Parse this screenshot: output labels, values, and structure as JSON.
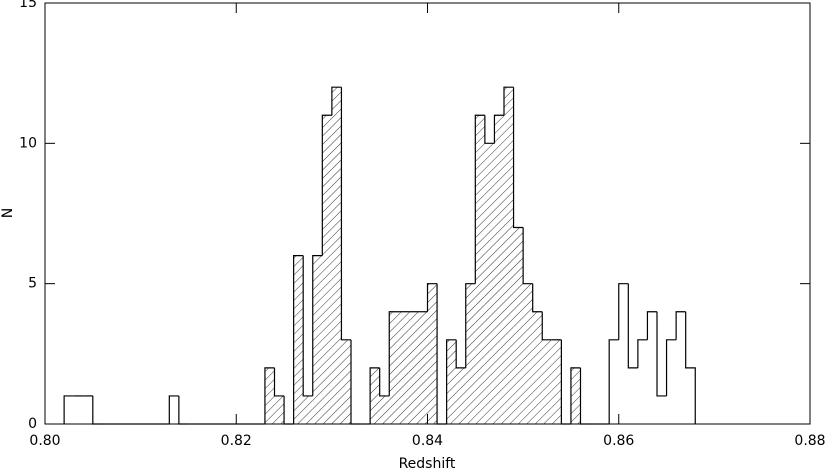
{
  "chart_data": {
    "type": "histogram",
    "xlabel": "Redshift",
    "ylabel": "N",
    "xlim": [
      0.8,
      0.88
    ],
    "ylim": [
      0,
      15
    ],
    "xticks": [
      {
        "value": 0.8,
        "label": "0.80"
      },
      0.82,
      0.84,
      0.86,
      0.88
    ],
    "yticks": [
      0,
      5,
      10,
      15
    ],
    "bins": [
      0.802,
      0.803,
      0.804,
      0.805,
      0.806,
      0.807,
      0.808,
      0.809,
      0.81,
      0.811,
      0.812,
      0.813,
      0.814,
      0.815,
      0.816,
      0.817,
      0.818,
      0.819,
      0.82,
      0.821,
      0.822,
      0.823,
      0.824,
      0.825,
      0.826,
      0.827,
      0.828,
      0.829,
      0.83,
      0.831,
      0.832,
      0.833,
      0.834,
      0.835,
      0.836,
      0.837,
      0.838,
      0.839,
      0.84,
      0.841,
      0.842,
      0.843,
      0.844,
      0.845,
      0.846,
      0.847,
      0.848,
      0.849,
      0.85,
      0.851,
      0.852,
      0.853,
      0.854,
      0.855,
      0.856,
      0.857,
      0.858,
      0.859,
      0.86,
      0.861,
      0.862,
      0.863,
      0.864,
      0.865,
      0.866,
      0.867,
      0.868
    ],
    "series": [
      {
        "style": "outline",
        "color": "#000000",
        "values": [
          1,
          1,
          1,
          0,
          0,
          0,
          0,
          0,
          0,
          0,
          0,
          1,
          0,
          0,
          0,
          0,
          0,
          0,
          0,
          0,
          0,
          2,
          1,
          0,
          6,
          1,
          6,
          11,
          12,
          3,
          0,
          0,
          2,
          1,
          4,
          4,
          4,
          4,
          5,
          0,
          3,
          2,
          5,
          11,
          10,
          11,
          12,
          7,
          5,
          4,
          3,
          3,
          0,
          2,
          0,
          0,
          0,
          3,
          5,
          2,
          3,
          4,
          1,
          3,
          4,
          2
        ]
      },
      {
        "style": "hatched",
        "color": "#000000",
        "values": [
          0,
          0,
          0,
          0,
          0,
          0,
          0,
          0,
          0,
          0,
          0,
          0,
          0,
          0,
          0,
          0,
          0,
          0,
          0,
          0,
          0,
          2,
          1,
          0,
          6,
          1,
          6,
          11,
          12,
          3,
          0,
          0,
          2,
          1,
          4,
          4,
          4,
          4,
          5,
          0,
          3,
          2,
          5,
          11,
          10,
          11,
          12,
          7,
          5,
          4,
          3,
          3,
          0,
          2,
          0,
          0,
          0,
          0,
          0,
          0,
          0,
          0,
          0,
          0,
          0,
          0
        ]
      }
    ]
  }
}
